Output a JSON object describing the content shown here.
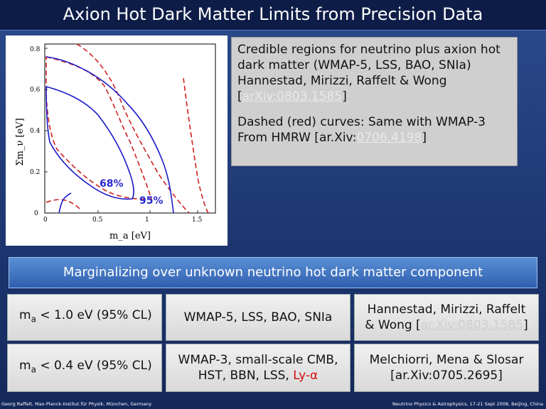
{
  "title": "Axion Hot Dark Matter Limits from Precision Data",
  "plot": {
    "ylabel": "Σm_ν [eV]",
    "xlabel": "m_a [eV]",
    "yticks": [
      "0",
      "0.2",
      "0.4",
      "0.6",
      "0.8"
    ],
    "xticks": [
      "0",
      "0.5",
      "1",
      "1.5"
    ],
    "label_68": "68%",
    "label_95": "95%",
    "colors": {
      "solid": "#1a1ac8",
      "dashed": "#d02020",
      "label": "#2a2ad0"
    }
  },
  "info": {
    "line1": "Credible regions for neutrino plus axion hot",
    "line2": "dark matter (WMAP-5, LSS, BAO, SNIa)",
    "line3": "Hannestad, Mirizzi, Raffelt & Wong",
    "ref1_open": "[",
    "ref1": "arXiv:0803.1585",
    "ref1_close": "]",
    "line4": "Dashed (red) curves: Same with WMAP-3",
    "line5_prefix": "From HMRW [ar.Xiv:",
    "ref2": "0706.4198",
    "ref2_close": "]"
  },
  "banner": "Marginalizing over unknown neutrino hot dark matter component",
  "rows": [
    {
      "limit": "m",
      "limit_sub": "a",
      "limit_rest": " < 1.0 eV (95% CL)",
      "data": "WMAP-5, LSS, BAO, SNIa",
      "ref_line1": "Hannestad, Mirizzi, Raffelt",
      "ref_line2_prefix": "& Wong [",
      "ref_link": "ar.Xiv:0803.1585",
      "ref_line2_suffix": "]"
    },
    {
      "limit": "m",
      "limit_sub": "a",
      "limit_rest": " < 0.4 eV (95% CL)",
      "data_line1": "WMAP-3, small-scale CMB,",
      "data_line2_prefix": "HST, BBN, LSS, ",
      "data_lya": "Ly-α",
      "ref_line1": "Melchiorri, Mena & Slosar",
      "ref_line2": "[ar.Xiv:0705.2695]"
    }
  ],
  "footer": {
    "left": "Georg Raffelt, Max-Planck-Institut für Physik, München, Germany",
    "right": "Neutrino Physics & Astrophysics, 17-21 Sept 2008, Beijing, China"
  }
}
